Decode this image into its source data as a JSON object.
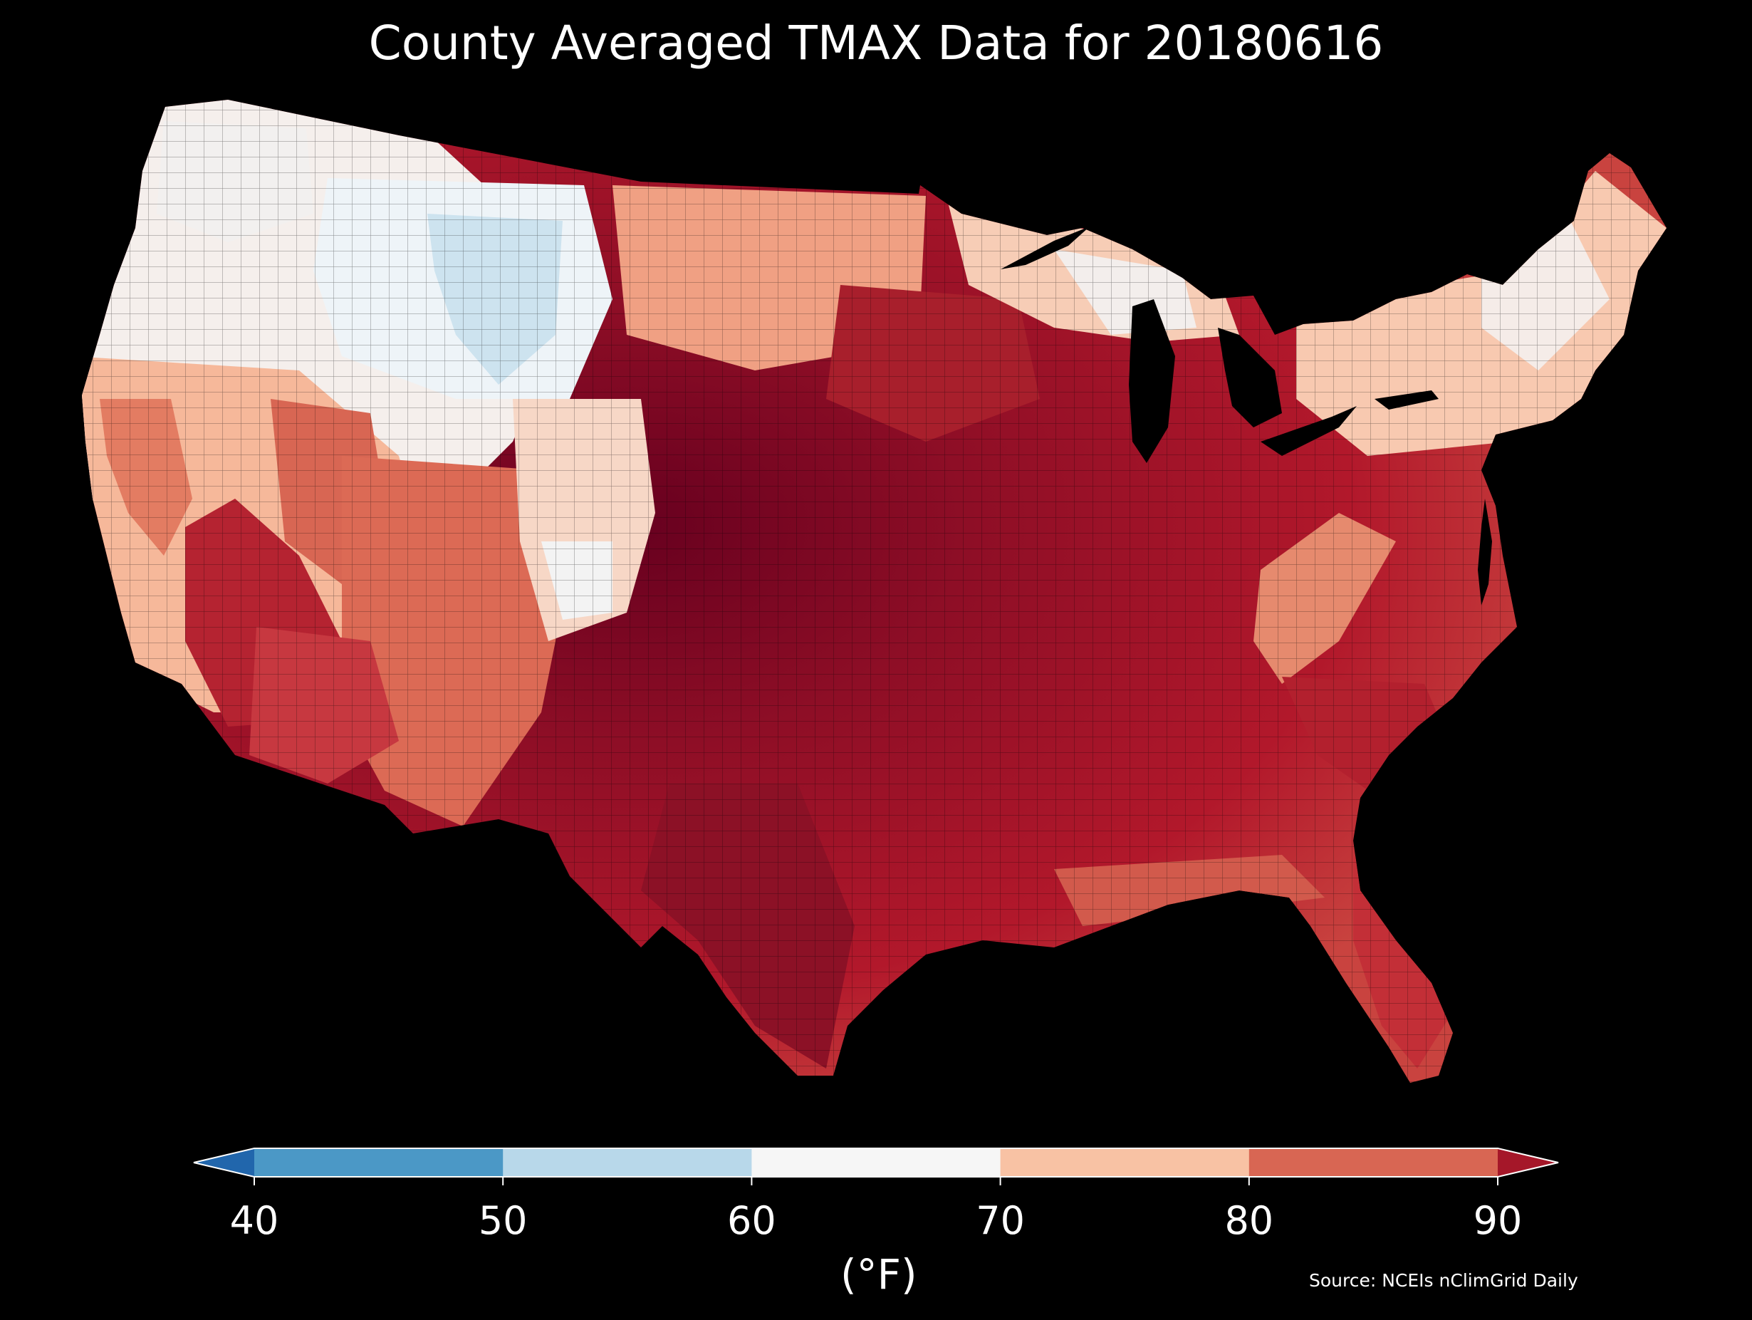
{
  "title": "County Averaged TMAX Data for 20180616",
  "colorbar": {
    "ticks": [
      "40",
      "50",
      "60",
      "70",
      "80",
      "90"
    ],
    "unit_label": "(°F)",
    "bins": [
      {
        "range": "<40",
        "color": "#2166ac"
      },
      {
        "range": "40-50",
        "color": "#4b98c6"
      },
      {
        "range": "50-60",
        "color": "#b8d8ea"
      },
      {
        "range": "60-70",
        "color": "#f6f6f6"
      },
      {
        "range": "70-80",
        "color": "#f8c2a4"
      },
      {
        "range": "80-90",
        "color": "#d86653"
      },
      {
        "range": ">90",
        "color": "#a51729"
      }
    ]
  },
  "source": "Source: NCEIs nClimGrid Daily",
  "map": {
    "region": "Contiguous United States",
    "variable": "TMAX",
    "units": "°F",
    "background": "#000000",
    "county_borders": true
  }
}
